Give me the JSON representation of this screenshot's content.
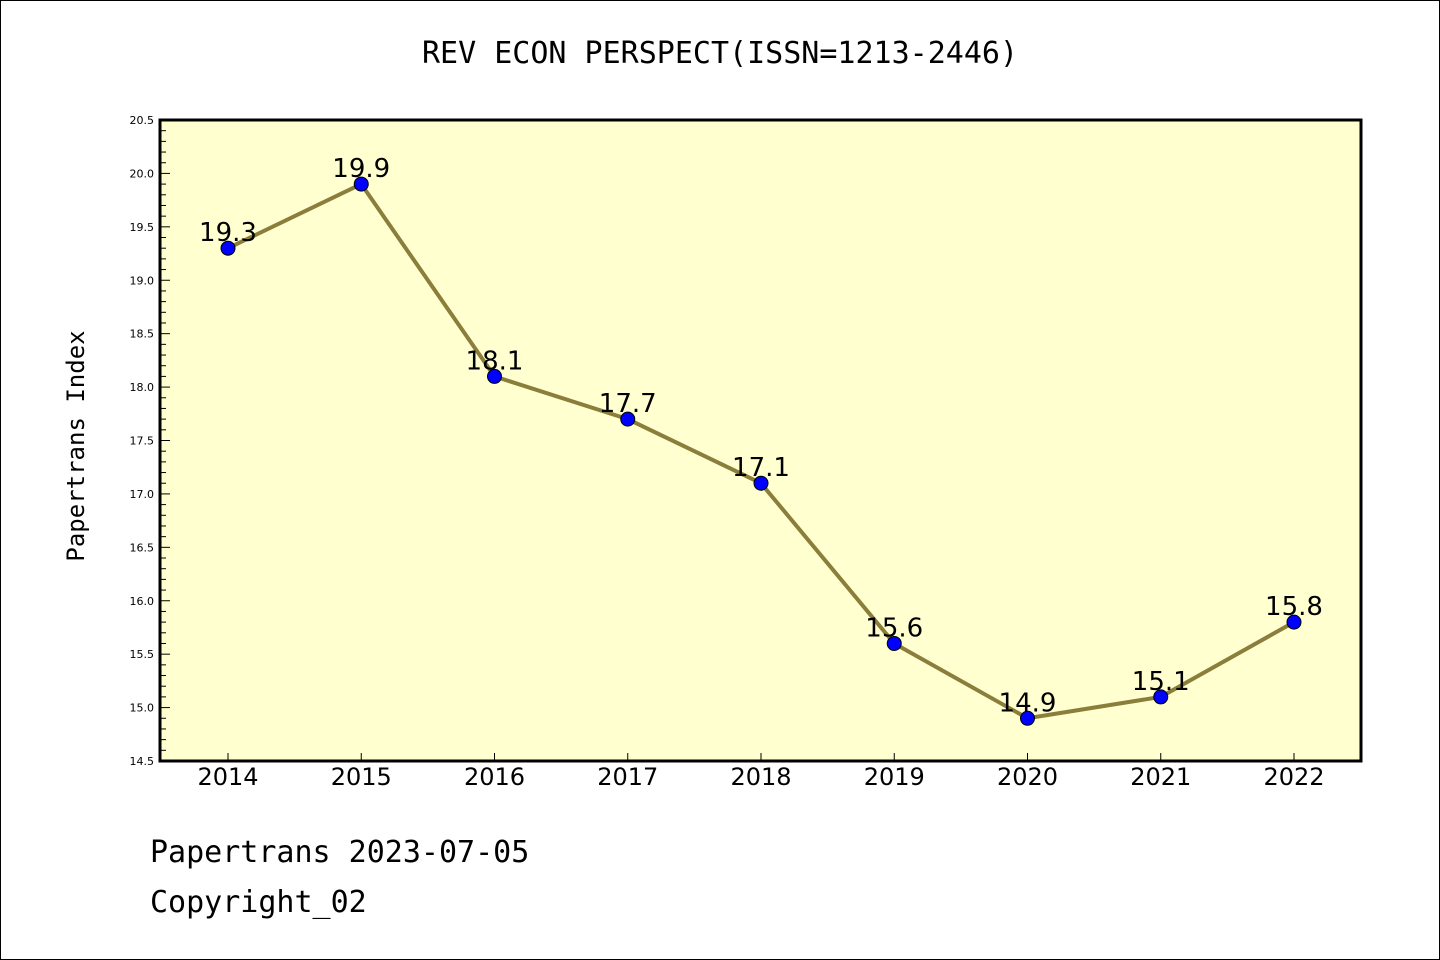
{
  "chart_data": {
    "type": "line",
    "title": "REV ECON PERSPECT(ISSN=1213-2446)",
    "xlabel": "",
    "ylabel": "Papertrans Index",
    "categories": [
      "2014",
      "2015",
      "2016",
      "2017",
      "2018",
      "2019",
      "2020",
      "2021",
      "2022"
    ],
    "series": [
      {
        "values": [
          19.3,
          19.9,
          18.1,
          17.7,
          17.1,
          15.6,
          14.9,
          15.1,
          15.8
        ],
        "data_labels": [
          "19.3",
          "19.9",
          "18.1",
          "17.7",
          "17.1",
          "15.6",
          "14.9",
          "15.1",
          "15.8"
        ]
      }
    ],
    "ylim": [
      14.5,
      20.5
    ],
    "yticks": [
      "14.5",
      "15.0",
      "15.5",
      "16.0",
      "16.5",
      "17.0",
      "17.5",
      "18.0",
      "18.5",
      "19.0",
      "19.5",
      "20.0",
      "20.5"
    ],
    "grid": false,
    "colors": {
      "plot_background": "#ffffd0",
      "line": "#8b7d3a",
      "marker": "#0000ff"
    }
  },
  "footer": {
    "line1": "Papertrans 2023-07-05",
    "line2": "Copyright_02"
  }
}
